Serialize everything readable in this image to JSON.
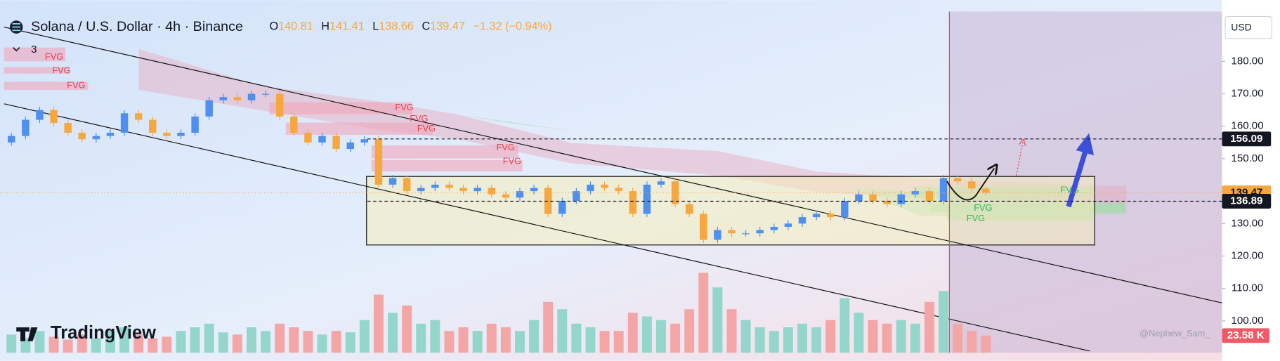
{
  "chart_data": {
    "type": "candlestick",
    "title": "Solana / U.S. Dollar · 4h · Binance",
    "ohlc_labels": {
      "o": "O",
      "h": "H",
      "l": "L",
      "c": "C",
      "open": "140.81",
      "high": "141.41",
      "low": "138.66",
      "close": "139.47",
      "change": "−1.32 (−0.94%)"
    },
    "indicator_count": "3",
    "currency": "USD",
    "brand": "TradingView",
    "watermark": "@Nephew_Sam_",
    "fvg_labels_red": [
      "FVG",
      "FVG",
      "FVG",
      "FVG",
      "FVG",
      "FVG",
      "FVG",
      "FVG"
    ],
    "fvg_labels_green": [
      "FVG",
      "FVG",
      "FVG"
    ],
    "up_color": "#4f8ff0",
    "down_color": "#f6a73f",
    "vol_up_color": "#94d6cc",
    "vol_down_color": "#f4a6a6",
    "open": [
      155,
      157,
      162,
      165,
      161,
      158,
      156,
      157,
      158,
      164,
      162,
      158,
      157,
      158,
      163,
      168,
      169,
      168,
      170,
      170,
      163,
      158,
      155,
      157,
      153,
      155,
      156,
      142,
      144,
      140,
      141,
      142,
      141,
      140,
      141,
      139,
      138,
      140,
      141,
      133,
      137,
      140,
      142,
      141,
      140,
      133,
      142,
      143,
      136,
      133,
      125,
      128,
      127,
      127,
      128,
      129,
      130,
      132,
      133,
      132,
      137,
      139,
      137,
      136,
      139,
      140,
      137,
      144,
      143,
      140.81
    ],
    "high": [
      158,
      163,
      166,
      166,
      162,
      159,
      158,
      159,
      165,
      165,
      163,
      159,
      159,
      164,
      169,
      170,
      170,
      171,
      171,
      171,
      164,
      159,
      158,
      158,
      156,
      157,
      157,
      145,
      145,
      142,
      143,
      143,
      142,
      142,
      142,
      140,
      141,
      142,
      142,
      138,
      141,
      143,
      143,
      142,
      141,
      143,
      144,
      144,
      137,
      134,
      129,
      129,
      128,
      129,
      130,
      131,
      133,
      134,
      134,
      138,
      140,
      140,
      138,
      140,
      141,
      141,
      145,
      145,
      144,
      141.41
    ],
    "low": [
      154,
      156,
      161,
      160,
      157,
      155,
      155,
      156,
      157,
      161,
      157,
      156,
      156,
      157,
      162,
      167,
      167,
      167,
      169,
      162,
      157,
      154,
      154,
      152,
      152,
      154,
      141,
      141,
      139,
      139,
      140,
      140,
      139,
      139,
      138,
      137,
      137,
      139,
      132,
      132,
      136,
      139,
      140,
      139,
      132,
      132,
      141,
      135,
      132,
      124,
      124,
      126,
      126,
      126,
      127,
      128,
      129,
      131,
      131,
      131,
      136,
      136,
      135,
      135,
      138,
      136,
      136,
      142,
      140,
      138.66
    ],
    "close": [
      157,
      162,
      165,
      161,
      158,
      156,
      157,
      158,
      164,
      162,
      158,
      157,
      158,
      163,
      168,
      169,
      168,
      170,
      170,
      163,
      158,
      155,
      157,
      153,
      155,
      156,
      142,
      144,
      140,
      141,
      142,
      141,
      140,
      141,
      139,
      138,
      140,
      141,
      133,
      137,
      140,
      142,
      141,
      140,
      133,
      142,
      143,
      136,
      133,
      125,
      128,
      127,
      127,
      128,
      129,
      130,
      132,
      133,
      132,
      137,
      139,
      137,
      136,
      139,
      140,
      137,
      144,
      143,
      140.81,
      139.47
    ],
    "volume": [
      25,
      20,
      30,
      22,
      18,
      25,
      20,
      30,
      35,
      25,
      20,
      22,
      30,
      35,
      40,
      28,
      25,
      35,
      30,
      40,
      35,
      30,
      25,
      30,
      28,
      45,
      80,
      55,
      65,
      40,
      45,
      30,
      35,
      30,
      40,
      35,
      30,
      45,
      70,
      60,
      40,
      35,
      30,
      30,
      55,
      50,
      45,
      40,
      60,
      110,
      90,
      60,
      45,
      35,
      30,
      35,
      40,
      35,
      45,
      75,
      55,
      45,
      40,
      45,
      40,
      70,
      85,
      40,
      30,
      23.58
    ],
    "last_volume_label": "23.58 K",
    "vlim": [
      0,
      470
    ],
    "ylim": [
      90.2,
      195.35
    ],
    "yticks": [
      {
        "value": 100,
        "label": "100.00"
      },
      {
        "value": 110,
        "label": "110.00"
      },
      {
        "value": 120,
        "label": "120.00"
      },
      {
        "value": 130,
        "label": "130.00"
      },
      {
        "value": 140,
        "label": "140.00"
      },
      {
        "value": 150,
        "label": "150.00"
      },
      {
        "value": 160,
        "label": "160.00"
      },
      {
        "value": 170,
        "label": "170.00"
      },
      {
        "value": 180,
        "label": "180.00"
      }
    ],
    "levels": [
      {
        "value": 156.09,
        "label": "156.09",
        "color": "#131722"
      },
      {
        "value": 139.47,
        "label": "139.47",
        "color": "#f6a73f"
      },
      {
        "value": 136.89,
        "label": "136.89",
        "color": "#131722"
      }
    ]
  }
}
